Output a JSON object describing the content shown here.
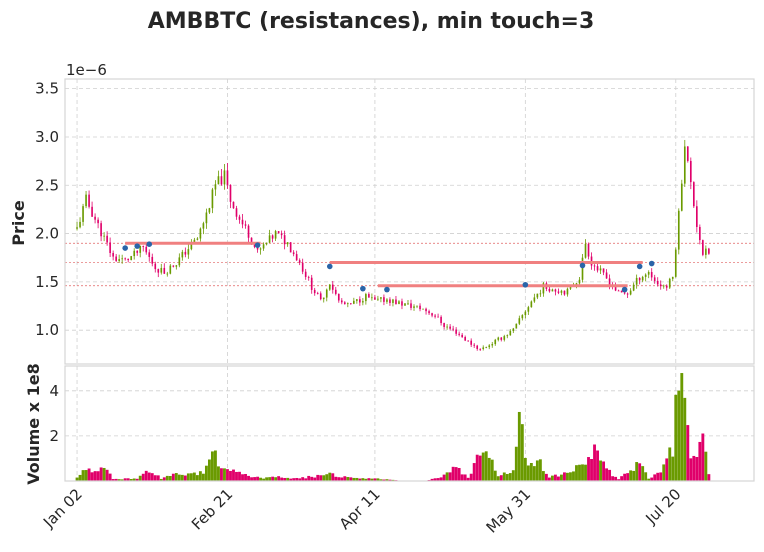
{
  "chart_data": {
    "type": "candlestick",
    "title": "AMBBTC (resistances), min touch=3",
    "price_panel": {
      "ylabel": "Price",
      "offset_text": "1e−6",
      "ylim": [
        0.65,
        3.6
      ],
      "yticks": [
        1.0,
        1.5,
        2.0,
        2.5,
        3.0,
        3.5
      ],
      "ytick_labels": [
        "1.0",
        "1.5",
        "2.0",
        "2.5",
        "3.0",
        "3.5"
      ]
    },
    "volume_panel": {
      "ylabel": "Volume x 1e8",
      "ylim": [
        0,
        5.1
      ],
      "yticks": [
        2,
        4
      ],
      "ytick_labels": [
        "2",
        "4"
      ]
    },
    "x_axis": {
      "xlim": [
        -4,
        225
      ],
      "ticks": [
        {
          "label": "Jan 02",
          "index": 0
        },
        {
          "label": "Feb 21",
          "index": 50
        },
        {
          "label": "Apr 11",
          "index": 99
        },
        {
          "label": "May 31",
          "index": 149
        },
        {
          "label": "Jul 20",
          "index": 199
        }
      ]
    },
    "up_color": "#6a9a00",
    "down_color": "#e0006a",
    "resistance_color": "#f08080",
    "touch_color": "#2a64a8",
    "grid": true,
    "resistance_lines": [
      {
        "level": 1.9,
        "x_start": 16,
        "x_end": 61
      },
      {
        "level": 1.7,
        "x_start": 84,
        "x_end": 188
      },
      {
        "level": 1.46,
        "x_start": 100,
        "x_end": 183
      }
    ],
    "touch_points": [
      {
        "x": 16,
        "y": 1.85
      },
      {
        "x": 20,
        "y": 1.87
      },
      {
        "x": 24,
        "y": 1.89
      },
      {
        "x": 60,
        "y": 1.88
      },
      {
        "x": 84,
        "y": 1.66
      },
      {
        "x": 95,
        "y": 1.43
      },
      {
        "x": 103,
        "y": 1.42
      },
      {
        "x": 149,
        "y": 1.47
      },
      {
        "x": 168,
        "y": 1.67
      },
      {
        "x": 182,
        "y": 1.42
      },
      {
        "x": 187,
        "y": 1.66
      },
      {
        "x": 191,
        "y": 1.69
      }
    ],
    "price_anchors": [
      [
        0,
        2.05
      ],
      [
        3,
        2.35
      ],
      [
        6,
        2.15
      ],
      [
        9,
        1.95
      ],
      [
        12,
        1.75
      ],
      [
        16,
        1.72
      ],
      [
        19,
        1.78
      ],
      [
        22,
        1.85
      ],
      [
        26,
        1.65
      ],
      [
        29,
        1.6
      ],
      [
        33,
        1.7
      ],
      [
        37,
        1.85
      ],
      [
        40,
        1.95
      ],
      [
        43,
        2.2
      ],
      [
        46,
        2.5
      ],
      [
        49,
        2.6
      ],
      [
        51,
        2.35
      ],
      [
        54,
        2.15
      ],
      [
        57,
        2.0
      ],
      [
        60,
        1.8
      ],
      [
        63,
        1.9
      ],
      [
        66,
        2.0
      ],
      [
        70,
        1.9
      ],
      [
        74,
        1.7
      ],
      [
        78,
        1.45
      ],
      [
        81,
        1.3
      ],
      [
        84,
        1.5
      ],
      [
        87,
        1.3
      ],
      [
        90,
        1.25
      ],
      [
        93,
        1.3
      ],
      [
        96,
        1.35
      ],
      [
        99,
        1.3
      ],
      [
        103,
        1.32
      ],
      [
        107,
        1.28
      ],
      [
        111,
        1.25
      ],
      [
        115,
        1.22
      ],
      [
        119,
        1.15
      ],
      [
        122,
        1.05
      ],
      [
        126,
        0.98
      ],
      [
        130,
        0.88
      ],
      [
        134,
        0.8
      ],
      [
        137,
        0.85
      ],
      [
        141,
        0.92
      ],
      [
        145,
        1.0
      ],
      [
        148,
        1.15
      ],
      [
        151,
        1.3
      ],
      [
        155,
        1.45
      ],
      [
        159,
        1.42
      ],
      [
        163,
        1.4
      ],
      [
        167,
        1.55
      ],
      [
        169,
        1.9
      ],
      [
        171,
        1.7
      ],
      [
        174,
        1.6
      ],
      [
        177,
        1.5
      ],
      [
        180,
        1.38
      ],
      [
        183,
        1.38
      ],
      [
        187,
        1.55
      ],
      [
        190,
        1.6
      ],
      [
        193,
        1.48
      ],
      [
        196,
        1.45
      ],
      [
        198,
        1.55
      ],
      [
        200,
        2.2
      ],
      [
        202,
        2.95
      ],
      [
        204,
        2.5
      ],
      [
        206,
        2.1
      ],
      [
        208,
        1.8
      ],
      [
        210,
        1.8
      ]
    ],
    "volume_anchors": [
      [
        0,
        0.2
      ],
      [
        3,
        0.5
      ],
      [
        6,
        0.4
      ],
      [
        8,
        0.8
      ],
      [
        12,
        0.1
      ],
      [
        20,
        0.1
      ],
      [
        24,
        0.5
      ],
      [
        28,
        0.1
      ],
      [
        33,
        0.3
      ],
      [
        38,
        0.3
      ],
      [
        42,
        0.4
      ],
      [
        45,
        1.7
      ],
      [
        47,
        0.7
      ],
      [
        50,
        0.6
      ],
      [
        53,
        0.4
      ],
      [
        58,
        0.2
      ],
      [
        62,
        0.1
      ],
      [
        66,
        0.2
      ],
      [
        72,
        0.1
      ],
      [
        78,
        0.2
      ],
      [
        84,
        0.3
      ],
      [
        90,
        0.15
      ],
      [
        95,
        0.1
      ],
      [
        100,
        0.1
      ],
      [
        110,
        0.0
      ],
      [
        116,
        0.0
      ],
      [
        121,
        0.2
      ],
      [
        126,
        0.6
      ],
      [
        130,
        0.15
      ],
      [
        135,
        1.6
      ],
      [
        140,
        0.25
      ],
      [
        145,
        0.4
      ],
      [
        147,
        2.8
      ],
      [
        150,
        0.6
      ],
      [
        153,
        1.0
      ],
      [
        157,
        0.2
      ],
      [
        162,
        0.3
      ],
      [
        167,
        0.6
      ],
      [
        170,
        1.0
      ],
      [
        173,
        1.5
      ],
      [
        176,
        0.5
      ],
      [
        180,
        0.1
      ],
      [
        184,
        0.4
      ],
      [
        187,
        0.8
      ],
      [
        190,
        0.1
      ],
      [
        194,
        0.4
      ],
      [
        198,
        1.5
      ],
      [
        200,
        4.7
      ],
      [
        202,
        4.3
      ],
      [
        204,
        1.4
      ],
      [
        206,
        1.0
      ],
      [
        208,
        1.7
      ],
      [
        210,
        0.4
      ]
    ],
    "n_candles": 211
  }
}
